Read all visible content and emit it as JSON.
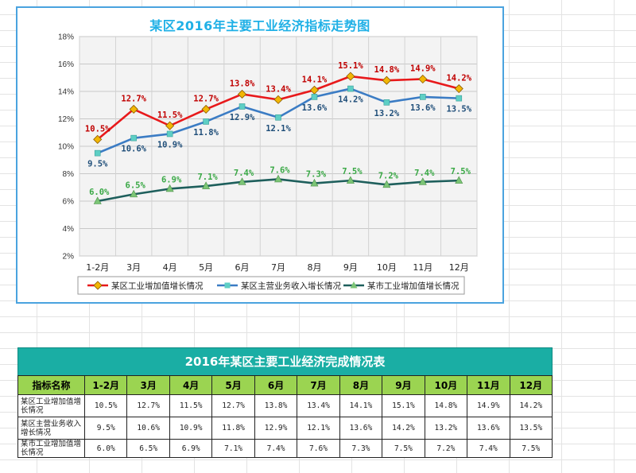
{
  "chart_data": {
    "type": "line",
    "title": "某区2016年主要工业经济指标走势图",
    "categories": [
      "1-2月",
      "3月",
      "4月",
      "5月",
      "6月",
      "7月",
      "8月",
      "9月",
      "10月",
      "11月",
      "12月"
    ],
    "ylim": [
      2,
      18
    ],
    "yticks": [
      "2%",
      "4%",
      "6%",
      "8%",
      "10%",
      "12%",
      "14%",
      "16%",
      "18%"
    ],
    "grid": true,
    "legend_position": "bottom",
    "series": [
      {
        "name": "某区工业增加值增长情况",
        "values": [
          10.5,
          12.7,
          11.5,
          12.7,
          13.8,
          13.4,
          14.1,
          15.1,
          14.8,
          14.9,
          14.2
        ],
        "color": "#e8191b",
        "marker": "diamond",
        "marker_color": "#f2b705",
        "label_color": "#c00000"
      },
      {
        "name": "某区主营业务收入增长情况",
        "values": [
          9.5,
          10.6,
          10.9,
          11.8,
          12.9,
          12.1,
          13.6,
          14.2,
          13.2,
          13.6,
          13.5
        ],
        "color": "#3b7cc4",
        "marker": "square",
        "marker_color": "#5ecfc5",
        "label_color": "#1f4e79"
      },
      {
        "name": "某市工业增加值增长情况",
        "values": [
          6.0,
          6.5,
          6.9,
          7.1,
          7.4,
          7.6,
          7.3,
          7.5,
          7.2,
          7.4,
          7.5
        ],
        "color": "#1e5f5c",
        "marker": "triangle",
        "marker_color": "#7cc576",
        "label_color": "#39a845"
      }
    ],
    "data_labels": [
      [
        "10.5%",
        "12.7%",
        "11.5%",
        "12.7%",
        "13.8%",
        "13.4%",
        "14.1%",
        "15.1%",
        "14.8%",
        "14.9%",
        "14.2%"
      ],
      [
        "9.5%",
        "10.6%",
        "10.9%",
        "11.8%",
        "12.9%",
        "12.1%",
        "13.6%",
        "14.2%",
        "13.2%",
        "13.6%",
        "13.5%"
      ],
      [
        "6.0%",
        "6.5%",
        "6.9%",
        "7.1%",
        "7.4%",
        "7.6%",
        "7.3%",
        "7.5%",
        "7.2%",
        "7.4%",
        "7.5%"
      ]
    ]
  },
  "table": {
    "title": "2016年某区主要工业经济完成情况表",
    "header": [
      "指标名称",
      "1-2月",
      "3月",
      "4月",
      "5月",
      "6月",
      "7月",
      "8月",
      "9月",
      "10月",
      "11月",
      "12月"
    ],
    "rows": [
      {
        "name": "某区工业增加值增长情况",
        "values": [
          "10.5%",
          "12.7%",
          "11.5%",
          "12.7%",
          "13.8%",
          "13.4%",
          "14.1%",
          "15.1%",
          "14.8%",
          "14.9%",
          "14.2%"
        ]
      },
      {
        "name": "某区主营业务收入增长情况",
        "values": [
          "9.5%",
          "10.6%",
          "10.9%",
          "11.8%",
          "12.9%",
          "12.1%",
          "13.6%",
          "14.2%",
          "13.2%",
          "13.6%",
          "13.5%"
        ]
      },
      {
        "name": "某市工业增加值增长情况",
        "values": [
          "6.0%",
          "6.5%",
          "6.9%",
          "7.1%",
          "7.4%",
          "7.6%",
          "7.3%",
          "7.5%",
          "7.2%",
          "7.4%",
          "7.5%"
        ]
      }
    ]
  }
}
